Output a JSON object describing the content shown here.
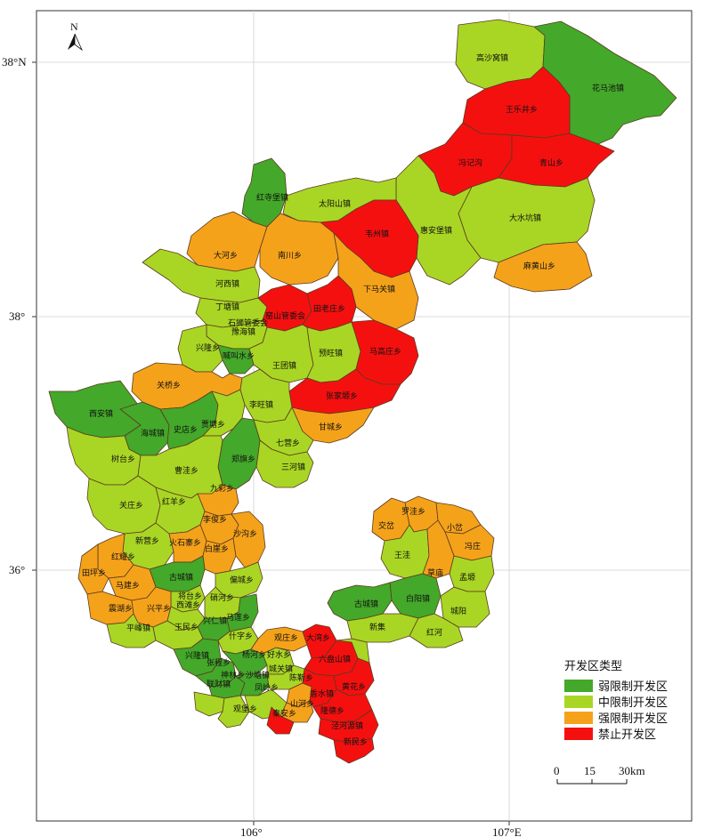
{
  "colors": {
    "weak": "#44a82a",
    "medium": "#a9d624",
    "strong": "#f5a21b",
    "prohibited": "#f51010",
    "border": "#5a3a20",
    "grid": "#cccccc"
  },
  "coords": {
    "lat_top": "38°N",
    "lat_mid": "38°",
    "lat_low": "36°",
    "lon_left": "106°",
    "lon_right": "107°E"
  },
  "north": "N",
  "legend": {
    "title": "开发区类型",
    "items": [
      {
        "key": "weak",
        "label": "弱限制开发区"
      },
      {
        "key": "medium",
        "label": "中限制开发区"
      },
      {
        "key": "strong",
        "label": "强限制开发区"
      },
      {
        "key": "prohibited",
        "label": "禁止开发区"
      }
    ]
  },
  "scale": {
    "t0": "0",
    "t1": "15",
    "t2": "30km"
  },
  "towns": [
    "高沙窝镇",
    "花马池镇",
    "王乐井乡",
    "冯记沟",
    "青山乡",
    "红寺堡镇",
    "太阳山镇",
    "韦州镇",
    "惠安堡镇",
    "大水坑镇",
    "大河乡",
    "南川乡",
    "麻黄山乡",
    "下马关镇",
    "河西镇",
    "丁塘镇",
    "石狮管委会",
    "豫海镇",
    "窑山管委会",
    "田老庄乡",
    "兴隆乡",
    "喊叫水乡",
    "王团镇",
    "预旺镇",
    "马高庄乡",
    "关桥乡",
    "张家塬乡",
    "西安镇",
    "李旺镇",
    "甘城乡",
    "海城镇",
    "史店乡",
    "贾塘乡",
    "七营乡",
    "树台乡",
    "郑旗乡",
    "三河镇",
    "曹洼乡",
    "九彩乡",
    "关庄乡",
    "红羊乡",
    "李俊乡",
    "新营乡",
    "火石寨乡",
    "白崖乡",
    "沙沟乡",
    "红耀乡",
    "田坪乡",
    "古城镇",
    "偏城乡",
    "马建乡",
    "将台乡",
    "震湖乡",
    "兴平乡",
    "西滩乡",
    "平峰镇",
    "硝河乡",
    "兴仁镇",
    "马莲乡",
    "罗洼乡",
    "交岔",
    "小岔",
    "王洼",
    "冯庄",
    "草庙",
    "孟塬",
    "红河",
    "新集",
    "城阳",
    "王民乡",
    "什字乡",
    "观庄乡",
    "大湾乡",
    "兴隆镇",
    "杨河乡",
    "好水乡",
    "六盘山镇",
    "张程乡",
    "神林乡",
    "沙塘镇",
    "城关镇",
    "黄花乡",
    "联财镇",
    "陈靳乡",
    "凤岭乡",
    "香水镇",
    "山河乡",
    "观堡乡",
    "泾河源镇",
    "新民乡",
    "秦安乡",
    "古城镇",
    "白阳镇",
    "隆德乡"
  ]
}
